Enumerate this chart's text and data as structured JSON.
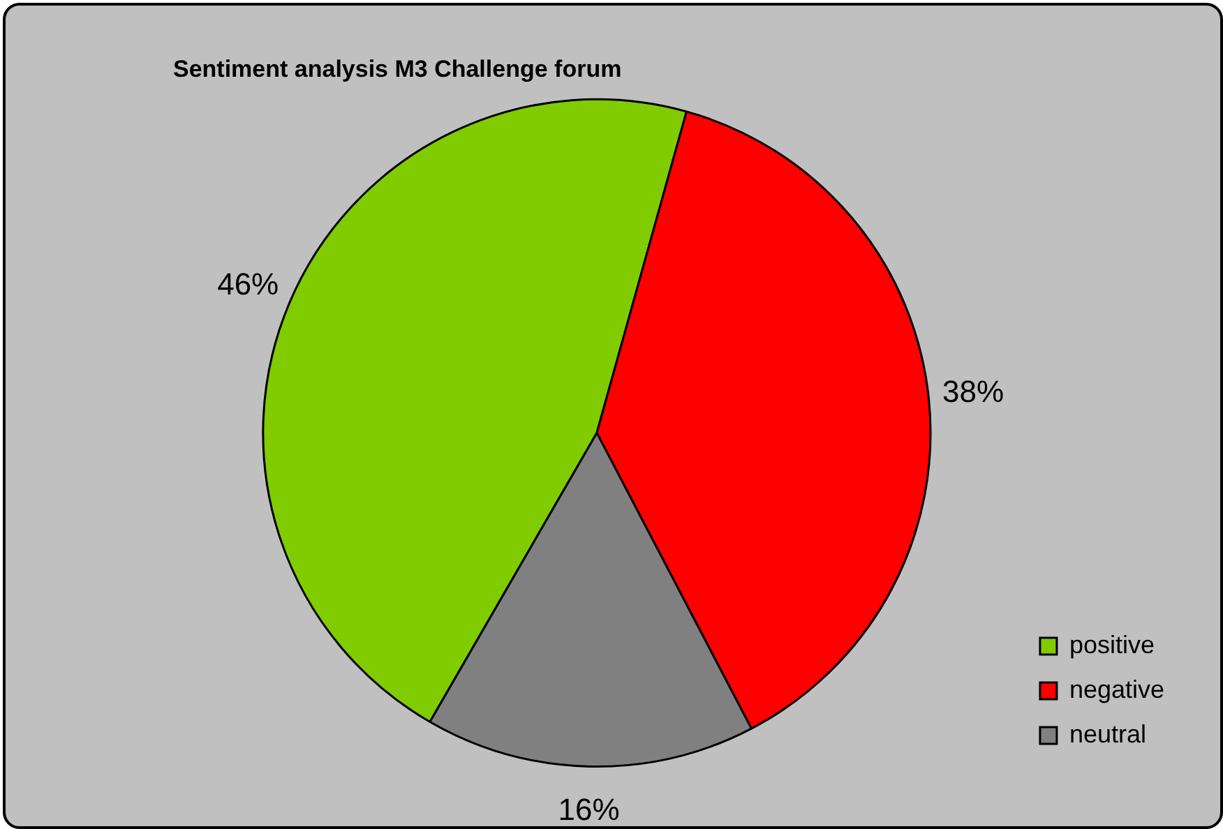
{
  "chart_data": {
    "type": "pie",
    "title": "Sentiment analysis M3 Challenge forum",
    "categories": [
      "positive",
      "negative",
      "neutral"
    ],
    "values": [
      46,
      38,
      16
    ],
    "colors": [
      "#80cc00",
      "#ff0000",
      "#808080"
    ],
    "value_labels": [
      "46%",
      "38%",
      "16%"
    ],
    "legend": "bottom right"
  }
}
